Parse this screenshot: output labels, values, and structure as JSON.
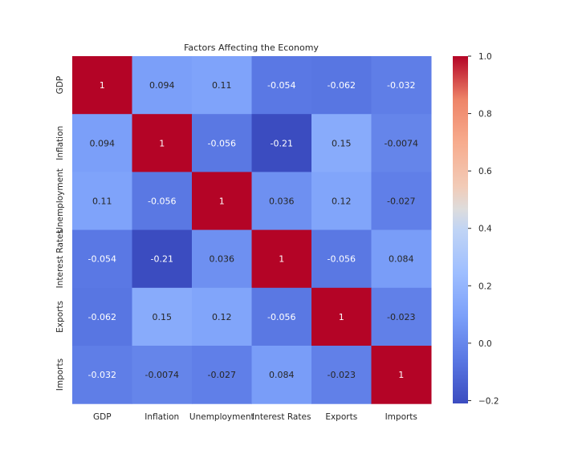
{
  "chart_data": {
    "type": "heatmap",
    "title": "Factors Affecting the Economy",
    "xlabel": "",
    "ylabel": "",
    "rows": [
      "GDP",
      "Inflation",
      "Unemployment",
      "Interest Rates",
      "Exports",
      "Imports"
    ],
    "columns": [
      "GDP",
      "Inflation",
      "Unemployment",
      "Interest Rates",
      "Exports",
      "Imports"
    ],
    "values": [
      [
        1,
        0.094,
        0.11,
        -0.054,
        -0.062,
        -0.032
      ],
      [
        0.094,
        1,
        -0.056,
        -0.21,
        0.15,
        -0.0074
      ],
      [
        0.11,
        -0.056,
        1,
        0.036,
        0.12,
        -0.027
      ],
      [
        -0.054,
        -0.21,
        0.036,
        1,
        -0.056,
        0.084
      ],
      [
        -0.062,
        0.15,
        0.12,
        -0.056,
        1,
        -0.023
      ],
      [
        -0.032,
        -0.0074,
        -0.027,
        0.084,
        -0.023,
        1
      ]
    ],
    "value_labels": [
      [
        "1",
        "0.094",
        "0.11",
        "-0.054",
        "-0.062",
        "-0.032"
      ],
      [
        "0.094",
        "1",
        "-0.056",
        "-0.21",
        "0.15",
        "-0.0074"
      ],
      [
        "0.11",
        "-0.056",
        "1",
        "0.036",
        "0.12",
        "-0.027"
      ],
      [
        "-0.054",
        "-0.21",
        "0.036",
        "1",
        "-0.056",
        "0.084"
      ],
      [
        "-0.062",
        "0.15",
        "0.12",
        "-0.056",
        "1",
        "-0.023"
      ],
      [
        "-0.032",
        "-0.0074",
        "-0.027",
        "0.084",
        "-0.023",
        "1"
      ]
    ],
    "colorbar": {
      "colormap": "coolwarm",
      "vmin": -0.21,
      "vmax": 1,
      "ticks": [
        1.0,
        0.8,
        0.6,
        0.4,
        0.2,
        0.0,
        -0.2
      ],
      "tick_labels": [
        "1.0",
        "0.8",
        "0.6",
        "0.4",
        "0.2",
        "0.0",
        "−0.2"
      ]
    },
    "grid": false,
    "annotated": true
  }
}
